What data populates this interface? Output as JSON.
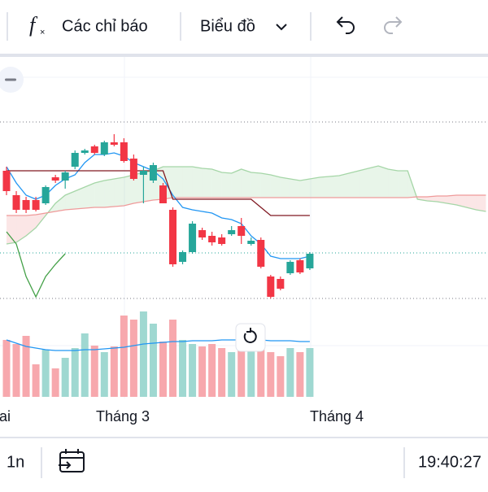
{
  "toolbar": {
    "indicators": "Các chỉ báo",
    "chart_type": "Biểu đồ"
  },
  "axis_labels": [
    "Hai",
    "Tháng 3",
    "Tháng 4"
  ],
  "bottom_bar": {
    "interval": "1n",
    "time": "19:40:27"
  },
  "chart_data": {
    "type": "candlestick",
    "ylim": [
      0,
      310
    ],
    "vlim": [
      0,
      110
    ],
    "up_color": "#26a69a",
    "down_color": "#f23645",
    "volume_up_color": "#9fd8d1",
    "volume_down_color": "#f7a8ad",
    "open": [
      170,
      140,
      134,
      134,
      130,
      162,
      158,
      175,
      192,
      200,
      190,
      205,
      205,
      185,
      165,
      158,
      152,
      122,
      58,
      70,
      97,
      90,
      88,
      92,
      102,
      80,
      85,
      40,
      37,
      44,
      60,
      50
    ],
    "high": [
      175,
      145,
      138,
      138,
      152,
      165,
      170,
      195,
      197,
      202,
      207,
      215,
      210,
      190,
      175,
      180,
      155,
      125,
      72,
      108,
      100,
      95,
      92,
      102,
      112,
      88,
      88,
      42,
      40,
      60,
      62,
      70
    ],
    "low": [
      140,
      118,
      118,
      120,
      128,
      155,
      148,
      172,
      190,
      190,
      188,
      200,
      180,
      158,
      130,
      155,
      130,
      52,
      55,
      68,
      85,
      78,
      78,
      90,
      80,
      78,
      50,
      13,
      23,
      42,
      43,
      48
    ],
    "close": [
      145,
      122,
      122,
      122,
      150,
      158,
      168,
      192,
      195,
      192,
      205,
      202,
      182,
      160,
      170,
      177,
      130,
      55,
      70,
      105,
      88,
      82,
      80,
      97,
      90,
      84,
      52,
      15,
      25,
      58,
      45,
      68
    ],
    "volume": [
      70,
      65,
      75,
      40,
      58,
      35,
      48,
      60,
      78,
      63,
      55,
      62,
      100,
      95,
      105,
      90,
      68,
      95,
      70,
      65,
      62,
      65,
      60,
      55,
      60,
      60,
      75,
      55,
      50,
      60,
      55,
      60
    ],
    "volume_ma": [
      70,
      66,
      62,
      60,
      58,
      57,
      57,
      57,
      58,
      58,
      59,
      60,
      61,
      63,
      65,
      66,
      67,
      68,
      68,
      69,
      69,
      69,
      70,
      70,
      70,
      70,
      70,
      69,
      69,
      69,
      68,
      68
    ],
    "lines": [
      {
        "color": "#2196f3",
        "values": [
          175,
          155,
          140,
          135,
          140,
          152,
          160,
          165,
          180,
          190,
          190,
          192,
          188,
          180,
          175,
          170,
          160,
          140,
          125,
          122,
          120,
          118,
          112,
          110,
          105,
          90,
          80,
          65,
          62,
          62,
          62,
          65
        ]
      },
      {
        "color": "#801922",
        "values": [
          170,
          170,
          170,
          170,
          170,
          170,
          170,
          170,
          170,
          170,
          170,
          170,
          170,
          170,
          170,
          170,
          170,
          135,
          135,
          135,
          135,
          135,
          135,
          135,
          135,
          135,
          125,
          115,
          115,
          115,
          115,
          115
        ]
      },
      {
        "color": "#43a047",
        "values": [
          95,
          80,
          40,
          15,
          40,
          55,
          68
        ]
      }
    ],
    "span_a": {
      "color": "#a5d6a7",
      "values": [
        80,
        82,
        90,
        100,
        115,
        130,
        140,
        145,
        150,
        155,
        158,
        160,
        162,
        165,
        168,
        170,
        175,
        175,
        175,
        175,
        173,
        172,
        168,
        167,
        172,
        168,
        167,
        165,
        162,
        160,
        158,
        160,
        162,
        163,
        164,
        167,
        170,
        173,
        176,
        172,
        170,
        170,
        135,
        133,
        132,
        130,
        128,
        125,
        122,
        120
      ]
    },
    "span_b": {
      "color": "#ef9a9a",
      "values": [
        115,
        115,
        115,
        116,
        118,
        120,
        122,
        123,
        124,
        125,
        125,
        126,
        127,
        130,
        132,
        134,
        135,
        137,
        137,
        137,
        137,
        137,
        137,
        137,
        137,
        137,
        137,
        137,
        137,
        137,
        137,
        137,
        137,
        137,
        137,
        137,
        137,
        137,
        137,
        137,
        137,
        137,
        138,
        138,
        139,
        139,
        140,
        140,
        140,
        140
      ]
    }
  }
}
